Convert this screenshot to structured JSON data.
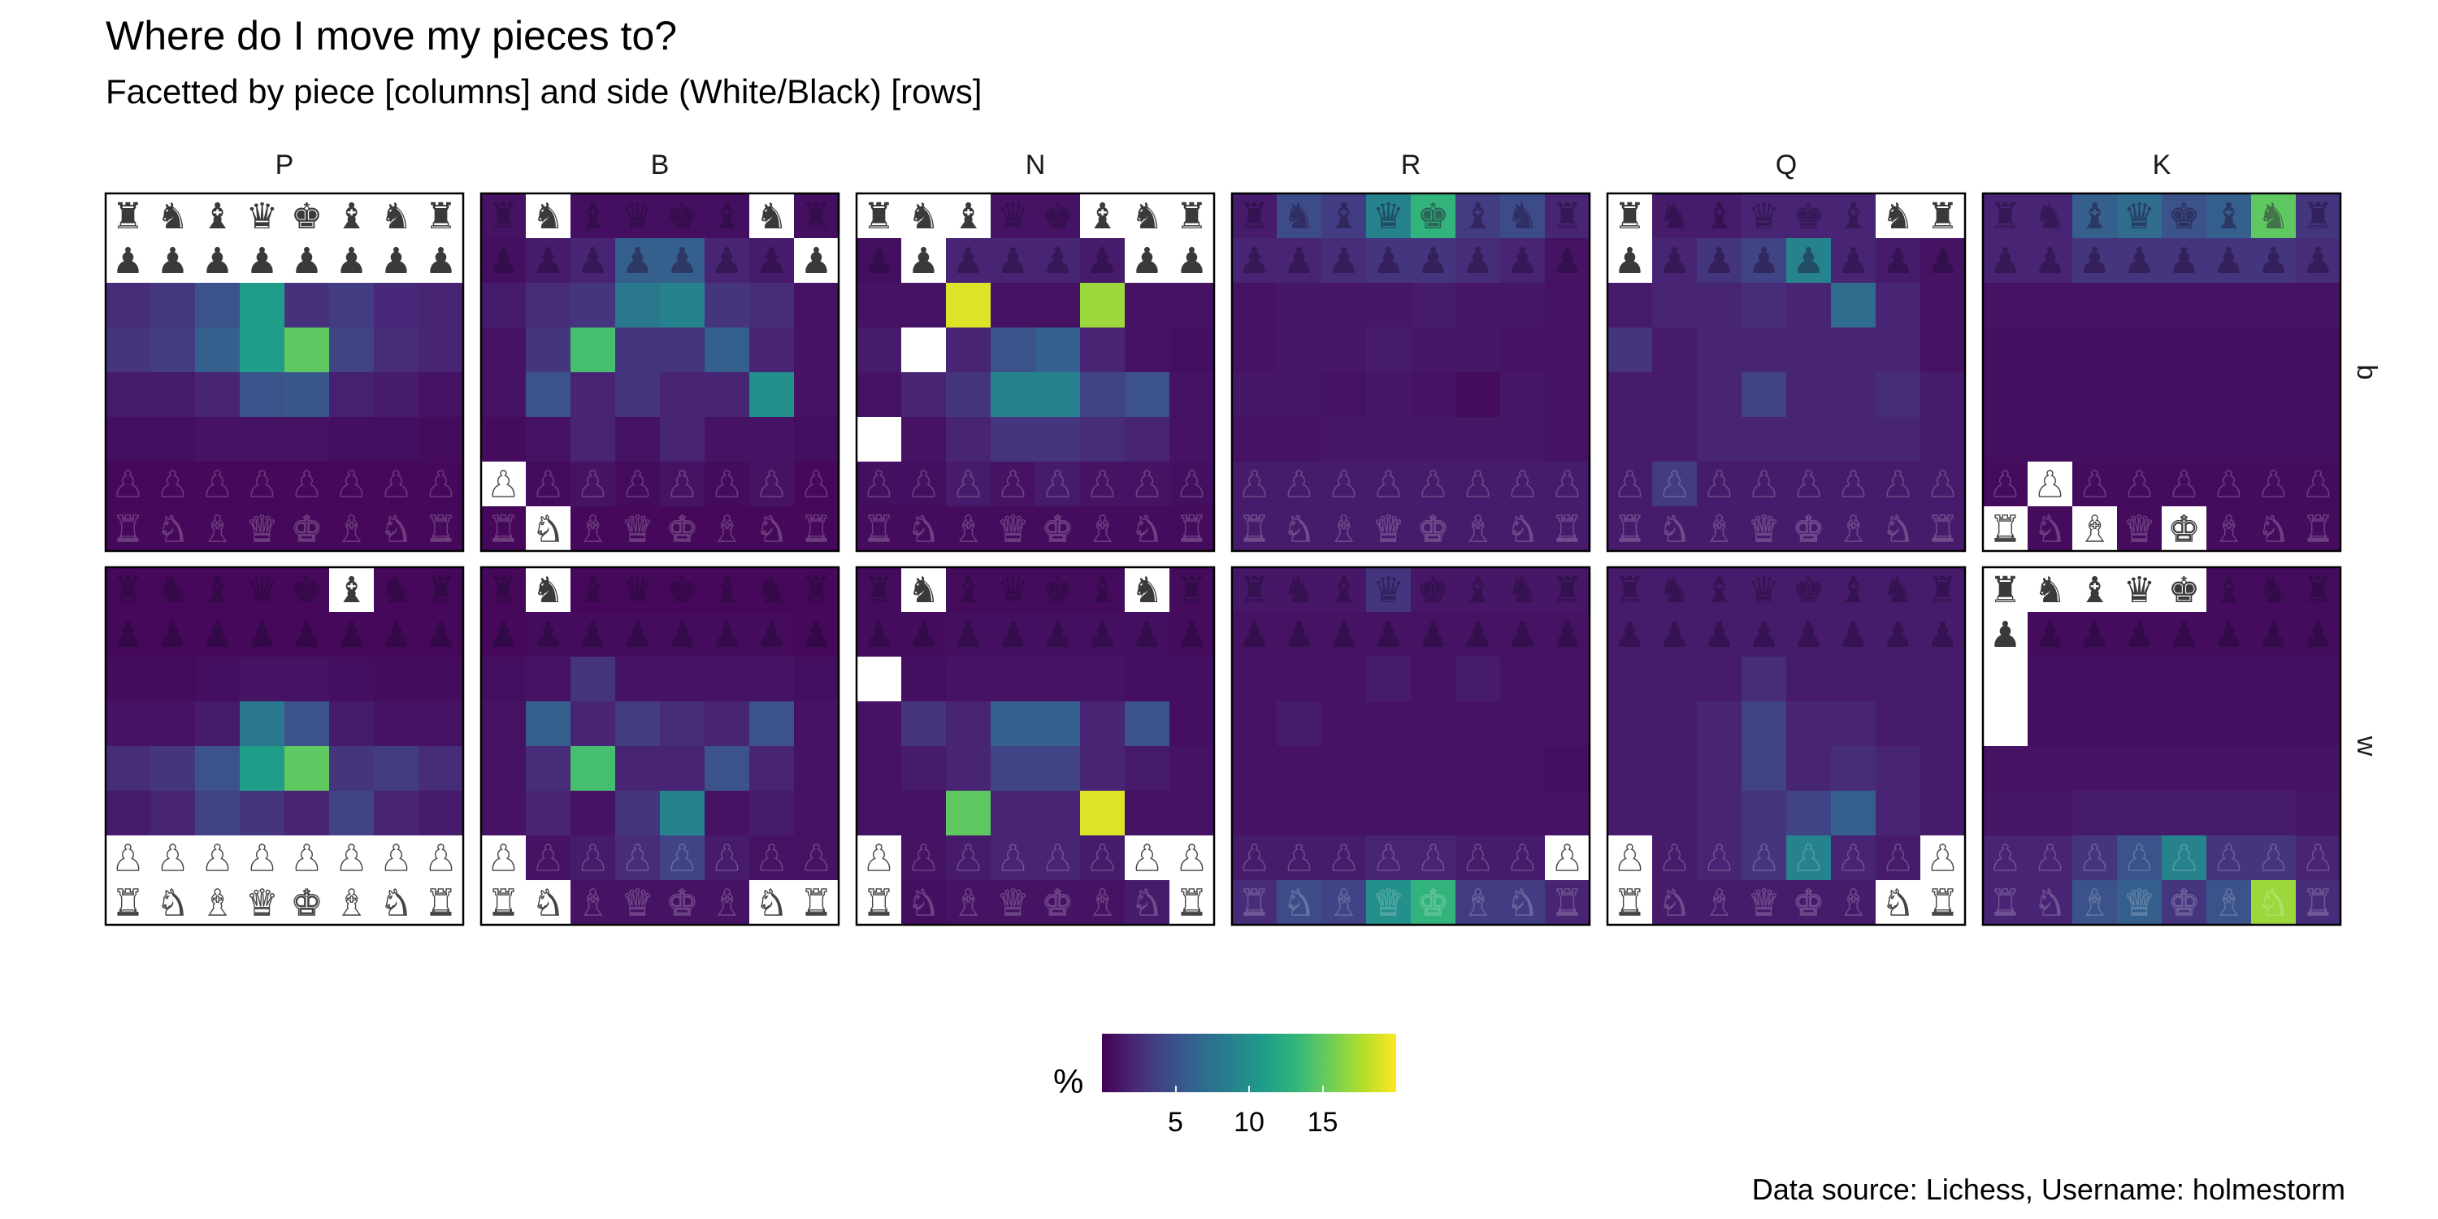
{
  "title": "Where do I move my pieces to?",
  "subtitle": "Facetted by piece [columns] and side (White/Black) [rows]",
  "caption": "Data source: Lichess, Username: holmestorm",
  "colors": {
    "scale": [
      "#440154",
      "#482878",
      "#3e4a89",
      "#31688e",
      "#26828e",
      "#1f9e89",
      "#35b779",
      "#6ece58",
      "#b5de2b",
      "#fde725"
    ],
    "empty_square": "#ffffff",
    "panel_border": "#000000",
    "piece_fill": "#3a3a3a",
    "piece_white_fill": "#ffffff"
  },
  "chart_data": {
    "type": "heatmap",
    "title": "Where do I move my pieces to?",
    "subtitle": "Facetted by piece [columns] and side (White/Black) [rows]",
    "columns": [
      "P",
      "B",
      "N",
      "R",
      "Q",
      "K"
    ],
    "rows": [
      "b",
      "w"
    ],
    "value_unit": "%",
    "legend": {
      "title": "%",
      "ticks": [
        5,
        10,
        15
      ],
      "range": [
        0,
        20
      ],
      "placement": "bottom"
    },
    "board_files": [
      "a",
      "b",
      "c",
      "d",
      "e",
      "f",
      "g",
      "h"
    ],
    "board_ranks_top_to_bottom": [
      8,
      7,
      6,
      5,
      4,
      3,
      2,
      1
    ],
    "panels": [
      {
        "piece": "P",
        "side": "b",
        "grid": [
          [
            null,
            null,
            null,
            null,
            null,
            null,
            null,
            null
          ],
          [
            null,
            null,
            null,
            null,
            null,
            null,
            null,
            null
          ],
          [
            2.5,
            3.2,
            5.0,
            11.0,
            2.8,
            3.5,
            2.2,
            2.0
          ],
          [
            3.0,
            3.5,
            6.0,
            11.0,
            15.0,
            4.0,
            2.5,
            2.0
          ],
          [
            1.5,
            1.5,
            2.0,
            5.0,
            5.5,
            1.8,
            1.5,
            1.0
          ],
          [
            0.8,
            0.8,
            1.0,
            1.0,
            1.0,
            0.8,
            0.8,
            0.6
          ],
          [
            0.4,
            0.4,
            0.4,
            0.4,
            0.4,
            0.4,
            0.4,
            0.4
          ],
          [
            0.4,
            0.4,
            0.4,
            0.4,
            0.4,
            0.4,
            0.4,
            0.4
          ]
        ]
      },
      {
        "piece": "B",
        "side": "b",
        "grid": [
          [
            1.0,
            null,
            0.8,
            0.8,
            0.8,
            0.8,
            null,
            0.8
          ],
          [
            0.8,
            1.5,
            2.0,
            6.0,
            6.0,
            2.0,
            1.5,
            null
          ],
          [
            1.5,
            2.5,
            3.0,
            8.0,
            9.0,
            3.0,
            2.5,
            1.0
          ],
          [
            1.0,
            3.0,
            14.0,
            3.0,
            3.0,
            6.0,
            2.0,
            1.0
          ],
          [
            1.0,
            5.0,
            2.0,
            3.0,
            2.0,
            2.0,
            10.0,
            1.0
          ],
          [
            0.6,
            1.0,
            2.0,
            1.0,
            2.0,
            1.0,
            1.0,
            0.8
          ],
          [
            null,
            0.6,
            1.0,
            0.6,
            1.0,
            0.6,
            1.0,
            0.4
          ],
          [
            0.4,
            null,
            0.4,
            0.4,
            0.4,
            0.4,
            0.4,
            0.4
          ]
        ]
      },
      {
        "piece": "N",
        "side": "b",
        "grid": [
          [
            null,
            null,
            null,
            1.0,
            1.0,
            null,
            null,
            null
          ],
          [
            0.8,
            null,
            2.0,
            2.0,
            2.0,
            1.5,
            null,
            null
          ],
          [
            1.0,
            1.0,
            19.0,
            1.0,
            1.0,
            17.0,
            1.0,
            1.0
          ],
          [
            1.5,
            null,
            2.0,
            5.0,
            6.0,
            2.0,
            1.0,
            0.8
          ],
          [
            1.0,
            2.0,
            3.0,
            9.0,
            9.0,
            4.0,
            5.0,
            1.0
          ],
          [
            null,
            1.0,
            2.0,
            3.0,
            3.0,
            2.5,
            2.0,
            1.0
          ],
          [
            0.8,
            0.8,
            1.5,
            1.0,
            1.5,
            1.0,
            1.0,
            0.8
          ],
          [
            0.6,
            0.6,
            0.6,
            0.6,
            0.6,
            0.6,
            0.6,
            0.6
          ]
        ]
      },
      {
        "piece": "R",
        "side": "b",
        "grid": [
          [
            1.5,
            4.5,
            3.5,
            9.0,
            13.0,
            3.5,
            4.5,
            2.0
          ],
          [
            2.0,
            2.0,
            2.5,
            3.0,
            3.0,
            2.5,
            2.0,
            1.0
          ],
          [
            1.0,
            1.2,
            1.2,
            1.2,
            1.5,
            1.2,
            1.2,
            1.0
          ],
          [
            1.0,
            1.2,
            1.2,
            1.5,
            1.2,
            1.2,
            1.0,
            1.0
          ],
          [
            1.2,
            1.2,
            1.0,
            1.2,
            1.0,
            0.6,
            1.2,
            1.0
          ],
          [
            1.0,
            1.0,
            1.2,
            1.2,
            1.2,
            1.2,
            1.2,
            1.0
          ],
          [
            1.5,
            1.5,
            1.5,
            1.5,
            1.5,
            1.5,
            1.5,
            1.5
          ],
          [
            1.5,
            1.5,
            1.5,
            1.5,
            1.5,
            1.5,
            1.5,
            1.5
          ]
        ]
      },
      {
        "piece": "Q",
        "side": "b",
        "grid": [
          [
            null,
            1.5,
            1.5,
            2.0,
            2.0,
            2.0,
            null,
            null
          ],
          [
            null,
            2.0,
            3.0,
            4.0,
            9.0,
            2.0,
            1.5,
            1.0
          ],
          [
            1.5,
            2.0,
            2.0,
            2.5,
            2.0,
            7.0,
            2.0,
            1.0
          ],
          [
            3.0,
            1.5,
            2.0,
            2.0,
            2.0,
            2.0,
            2.0,
            1.0
          ],
          [
            1.5,
            1.5,
            2.0,
            4.0,
            2.0,
            2.0,
            2.5,
            1.5
          ],
          [
            1.5,
            1.5,
            2.0,
            2.0,
            2.0,
            2.0,
            2.0,
            1.5
          ],
          [
            1.5,
            3.5,
            1.5,
            1.5,
            1.5,
            1.5,
            1.5,
            1.5
          ],
          [
            1.5,
            1.5,
            1.5,
            1.5,
            1.5,
            1.5,
            1.5,
            1.5
          ]
        ]
      },
      {
        "piece": "K",
        "side": "b",
        "grid": [
          [
            2.0,
            2.0,
            6.0,
            7.0,
            5.0,
            6.0,
            15.0,
            3.0
          ],
          [
            2.0,
            2.0,
            3.0,
            3.0,
            3.0,
            3.0,
            3.0,
            2.5
          ],
          [
            1.0,
            1.0,
            1.0,
            1.0,
            1.0,
            1.0,
            1.0,
            1.0
          ],
          [
            0.8,
            0.8,
            0.8,
            0.8,
            0.8,
            0.8,
            0.8,
            0.8
          ],
          [
            0.8,
            0.8,
            0.8,
            0.8,
            0.8,
            0.8,
            0.8,
            0.8
          ],
          [
            0.8,
            0.8,
            0.8,
            0.8,
            0.8,
            0.8,
            0.8,
            0.8
          ],
          [
            0.6,
            null,
            0.6,
            0.6,
            0.6,
            0.6,
            0.6,
            0.6
          ],
          [
            null,
            0.6,
            null,
            0.6,
            null,
            0.6,
            0.6,
            0.6
          ]
        ]
      },
      {
        "piece": "P",
        "side": "w",
        "grid": [
          [
            0.4,
            0.4,
            0.4,
            0.4,
            0.4,
            null,
            0.4,
            0.4
          ],
          [
            0.4,
            0.4,
            0.4,
            0.4,
            0.4,
            0.4,
            0.4,
            0.4
          ],
          [
            0.6,
            0.6,
            0.8,
            1.0,
            1.0,
            0.8,
            0.6,
            0.6
          ],
          [
            1.0,
            1.0,
            1.5,
            8.0,
            5.0,
            1.5,
            1.0,
            1.0
          ],
          [
            2.5,
            3.0,
            5.0,
            11.0,
            15.0,
            3.0,
            3.5,
            2.5
          ],
          [
            1.5,
            2.0,
            4.0,
            3.0,
            2.0,
            4.0,
            2.0,
            1.5
          ],
          [
            null,
            null,
            null,
            null,
            null,
            null,
            null,
            null
          ],
          [
            null,
            null,
            null,
            null,
            null,
            null,
            null,
            null
          ]
        ]
      },
      {
        "piece": "B",
        "side": "w",
        "grid": [
          [
            0.4,
            null,
            0.4,
            0.4,
            0.4,
            0.4,
            0.4,
            0.4
          ],
          [
            0.4,
            0.6,
            0.6,
            0.6,
            0.6,
            0.6,
            0.6,
            0.4
          ],
          [
            0.8,
            1.0,
            3.0,
            1.0,
            1.0,
            1.0,
            1.0,
            0.8
          ],
          [
            1.0,
            6.0,
            2.0,
            3.5,
            2.5,
            2.0,
            5.0,
            1.0
          ],
          [
            1.0,
            2.5,
            14.0,
            2.0,
            2.0,
            5.0,
            2.0,
            1.0
          ],
          [
            1.0,
            2.0,
            1.0,
            3.0,
            9.0,
            1.0,
            1.5,
            1.0
          ],
          [
            null,
            1.0,
            1.5,
            2.5,
            4.0,
            1.5,
            1.0,
            1.0
          ],
          [
            null,
            null,
            1.0,
            1.0,
            1.0,
            1.0,
            null,
            null
          ]
        ]
      },
      {
        "piece": "N",
        "side": "w",
        "grid": [
          [
            0.6,
            null,
            0.6,
            0.6,
            0.6,
            0.6,
            null,
            0.6
          ],
          [
            0.6,
            0.6,
            0.8,
            0.8,
            0.8,
            0.8,
            0.8,
            0.6
          ],
          [
            null,
            0.8,
            1.0,
            1.0,
            1.0,
            1.0,
            0.8,
            0.8
          ],
          [
            1.0,
            3.0,
            2.0,
            6.0,
            6.0,
            2.0,
            5.0,
            0.8
          ],
          [
            1.0,
            1.5,
            2.0,
            4.0,
            4.0,
            2.0,
            1.5,
            1.0
          ],
          [
            1.0,
            1.0,
            15.0,
            2.0,
            2.0,
            19.0,
            1.0,
            1.0
          ],
          [
            null,
            1.0,
            1.5,
            2.0,
            2.0,
            1.5,
            null,
            null
          ],
          [
            null,
            0.8,
            1.0,
            1.0,
            1.0,
            1.0,
            1.5,
            null
          ]
        ]
      },
      {
        "piece": "R",
        "side": "w",
        "grid": [
          [
            1.2,
            1.2,
            1.2,
            3.0,
            1.2,
            1.2,
            1.2,
            1.2
          ],
          [
            1.0,
            1.0,
            1.0,
            1.0,
            1.0,
            1.0,
            1.0,
            1.0
          ],
          [
            1.0,
            1.0,
            1.0,
            1.5,
            1.0,
            1.5,
            1.0,
            1.0
          ],
          [
            1.0,
            1.5,
            1.0,
            1.0,
            1.0,
            1.0,
            1.0,
            1.0
          ],
          [
            1.0,
            1.0,
            1.0,
            1.0,
            1.0,
            1.0,
            1.0,
            0.8
          ],
          [
            1.0,
            1.0,
            1.0,
            1.0,
            1.0,
            1.0,
            1.0,
            1.0
          ],
          [
            1.5,
            1.5,
            1.5,
            2.0,
            2.0,
            1.5,
            1.5,
            null
          ],
          [
            2.5,
            4.5,
            4.0,
            10.0,
            13.0,
            3.5,
            3.5,
            2.0
          ]
        ]
      },
      {
        "piece": "Q",
        "side": "w",
        "grid": [
          [
            1.5,
            1.5,
            1.5,
            1.5,
            1.5,
            1.5,
            1.5,
            1.5
          ],
          [
            1.5,
            1.5,
            1.5,
            1.5,
            1.5,
            1.5,
            1.5,
            1.5
          ],
          [
            1.5,
            1.5,
            1.5,
            2.5,
            1.5,
            1.5,
            1.5,
            1.5
          ],
          [
            1.5,
            1.5,
            2.0,
            4.0,
            2.0,
            2.0,
            1.5,
            1.5
          ],
          [
            1.5,
            1.5,
            2.0,
            4.0,
            2.0,
            2.5,
            2.0,
            1.5
          ],
          [
            1.5,
            1.5,
            2.0,
            3.0,
            4.0,
            6.0,
            2.0,
            1.5
          ],
          [
            null,
            1.5,
            2.0,
            3.0,
            9.0,
            2.0,
            1.5,
            null
          ],
          [
            null,
            1.5,
            1.5,
            1.5,
            1.5,
            1.5,
            null,
            null
          ]
        ]
      },
      {
        "piece": "K",
        "side": "w",
        "grid": [
          [
            null,
            null,
            null,
            null,
            null,
            0.6,
            0.6,
            0.6
          ],
          [
            null,
            0.6,
            0.6,
            0.6,
            0.6,
            0.6,
            0.6,
            0.6
          ],
          [
            null,
            0.8,
            0.8,
            0.8,
            0.8,
            0.8,
            0.8,
            0.8
          ],
          [
            null,
            0.8,
            0.8,
            0.8,
            0.8,
            0.8,
            0.8,
            0.8
          ],
          [
            1.0,
            1.0,
            1.0,
            1.0,
            1.0,
            1.0,
            1.0,
            1.0
          ],
          [
            1.2,
            1.2,
            1.5,
            1.5,
            1.5,
            1.5,
            1.5,
            1.2
          ],
          [
            2.0,
            2.0,
            3.0,
            5.0,
            9.0,
            3.0,
            3.0,
            2.0
          ],
          [
            2.0,
            2.0,
            5.0,
            6.0,
            3.0,
            5.0,
            17.0,
            2.5
          ]
        ]
      }
    ],
    "starting_position_top_to_bottom": [
      "rnbqkbnr",
      "pppppppp",
      "........",
      "........",
      "........",
      "........",
      "PPPPPPPP",
      "RNBQKBNR"
    ]
  }
}
